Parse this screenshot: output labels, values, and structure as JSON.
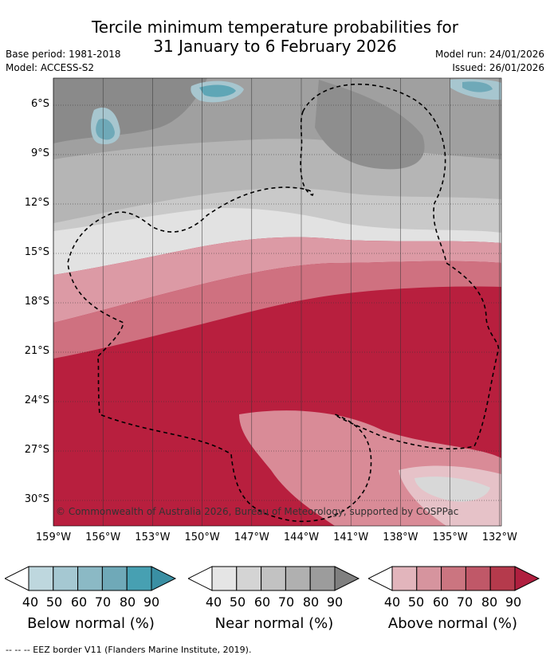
{
  "title_line1": "Tercile minimum temperature probabilities for",
  "title_line2": "31 January to 6 February 2026",
  "base_period": "Base period: 1981-2018",
  "model": "Model: ACCESS-S2",
  "model_run": "Model run: 24/01/2026",
  "issued": "Issued: 26/01/2026",
  "lat_ticks": [
    "6°S",
    "9°S",
    "12°S",
    "15°S",
    "18°S",
    "21°S",
    "24°S",
    "27°S",
    "30°S"
  ],
  "lon_ticks": [
    "159°W",
    "156°W",
    "153°W",
    "150°W",
    "147°W",
    "144°W",
    "141°W",
    "138°W",
    "135°W",
    "132°W"
  ],
  "copyright": "© Commonwealth of Australia 2026, Bureau of Meteorology, supported by COSPPac",
  "legend": {
    "below": {
      "label": "Below normal (%)",
      "ticks": [
        "40",
        "50",
        "60",
        "70",
        "80",
        "90"
      ],
      "colors": [
        "#ffffff",
        "#bed7de",
        "#a5c8d2",
        "#8bb9c5",
        "#6fa9b8",
        "#47a0b2"
      ]
    },
    "near": {
      "label": "Near normal (%)",
      "ticks": [
        "40",
        "50",
        "60",
        "70",
        "80",
        "90"
      ],
      "colors": [
        "#ffffff",
        "#e5e5e5",
        "#d4d4d4",
        "#c2c2c2",
        "#b0b0b0",
        "#9c9c9c"
      ]
    },
    "above": {
      "label": "Above normal (%)",
      "ticks": [
        "40",
        "50",
        "60",
        "70",
        "80",
        "90"
      ],
      "colors": [
        "#ffffff",
        "#e2b5bc",
        "#d6949e",
        "#cb7580",
        "#c05868",
        "#b53a4c"
      ]
    }
  },
  "extend_colors": {
    "below": "#3a8fa3",
    "near": "#808080",
    "above": "#b01f3f"
  },
  "footnote": "--  --  -- EEZ border V11 (Flanders Marine Institute, 2019)."
}
